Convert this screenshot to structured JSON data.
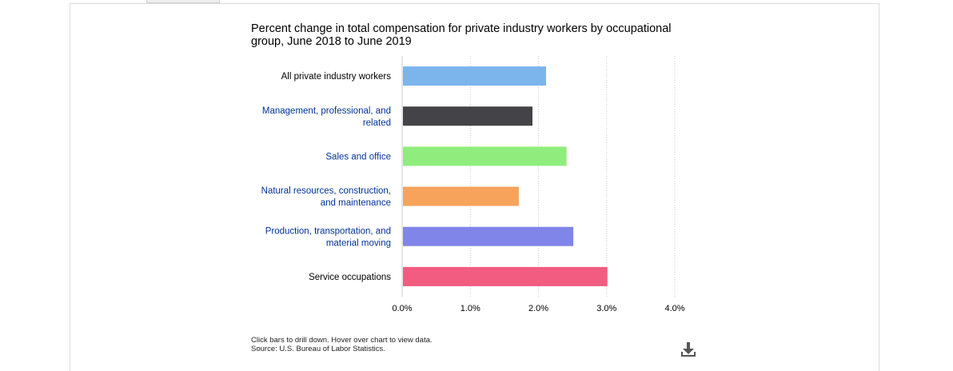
{
  "chart_data": {
    "type": "bar",
    "orientation": "horizontal",
    "title": "Percent change in total compensation for private industry workers by occupational group, June 2018 to June 2019",
    "categories": [
      "All private industry workers",
      "Management, professional, and related",
      "Sales and office",
      "Natural resources, construction, and maintenance",
      "Production, transportation, and material moving",
      "Service occupations"
    ],
    "category_links": [
      false,
      true,
      true,
      true,
      true,
      false
    ],
    "values": [
      2.1,
      1.9,
      2.4,
      1.7,
      2.5,
      3.0
    ],
    "colors": [
      "#7cb5ec",
      "#434348",
      "#90ed7d",
      "#f7a35c",
      "#8085e9",
      "#f15c80"
    ],
    "xlim": [
      0,
      4
    ],
    "ticks": [
      "0.0%",
      "1.0%",
      "2.0%",
      "3.0%",
      "4.0%"
    ],
    "grid": true,
    "legend": "none"
  },
  "notes": {
    "instructions": "Click bars to drill down. Hover over chart to view data.",
    "source": "Source: U.S. Bureau of Labor Statistics."
  },
  "icons": {
    "download": "download-icon"
  },
  "colors": {
    "link_label": "#003399",
    "plain_label": "#000000",
    "grid": "#cccccc"
  }
}
